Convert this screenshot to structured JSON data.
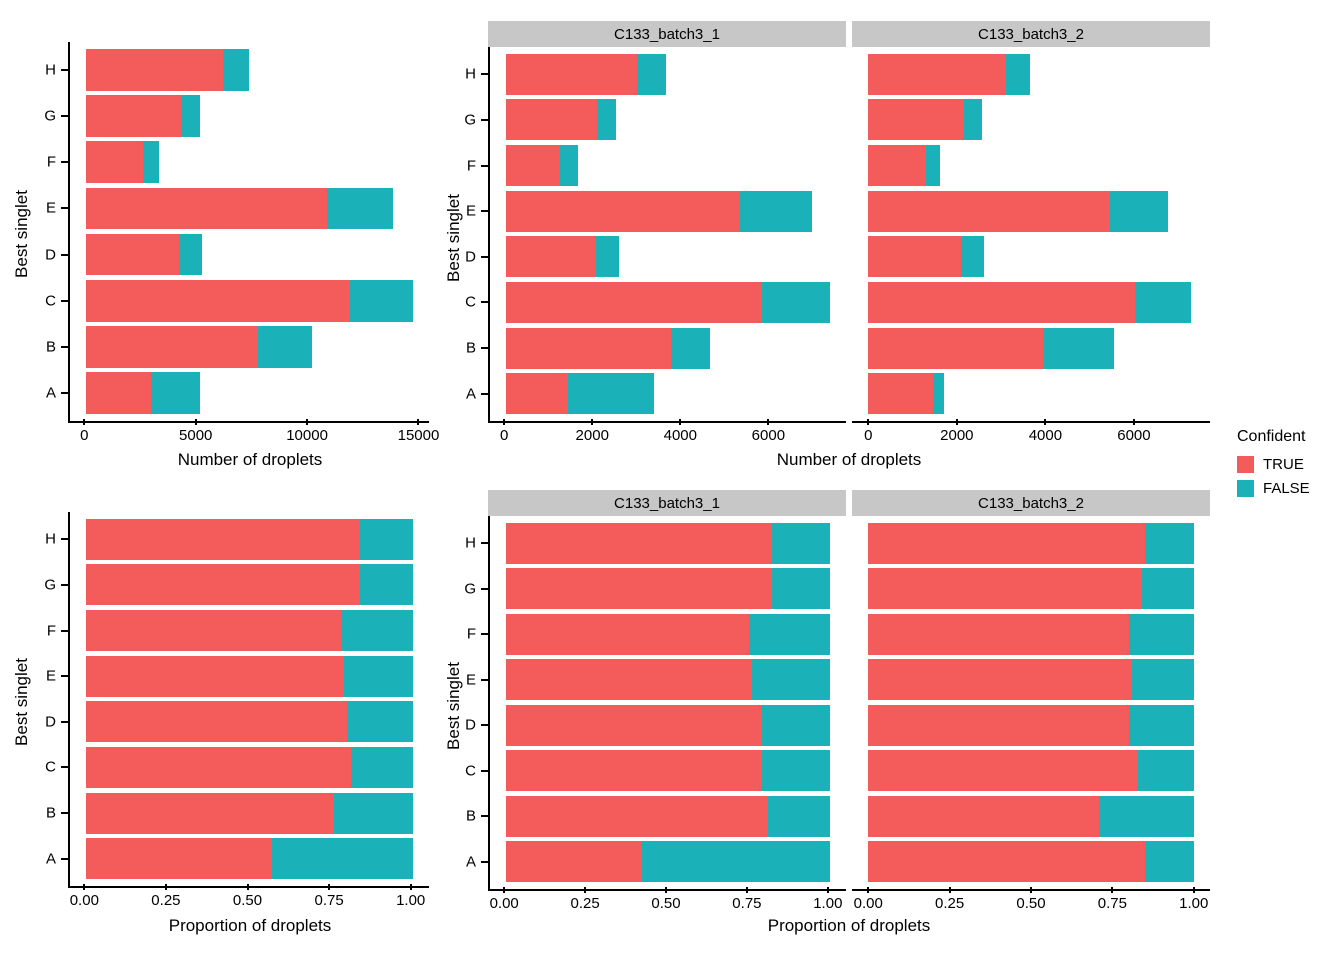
{
  "axis_titles": {
    "y": "Best singlet",
    "x_count": "Number of droplets",
    "x_prop": "Proportion of droplets"
  },
  "facets": [
    "C133_batch3_1",
    "C133_batch3_2"
  ],
  "categories_top_to_bottom": [
    "H",
    "G",
    "F",
    "E",
    "D",
    "C",
    "B",
    "A"
  ],
  "legend": {
    "title": "Confident",
    "items": [
      {
        "label": "TRUE",
        "color": "#F45B5B"
      },
      {
        "label": "FALSE",
        "color": "#1AB2B8"
      }
    ]
  },
  "colors": {
    "true": "#F45B5B",
    "false": "#1AB2B8",
    "strip_bg": "#C7C7C7",
    "axis": "#000000",
    "background": "#FFFFFF"
  },
  "chart_data": [
    {
      "type": "bar",
      "orientation": "horizontal",
      "stacked": true,
      "facet": null,
      "xlabel": "Number of droplets",
      "ylabel": "Best singlet",
      "categories": [
        "H",
        "G",
        "F",
        "E",
        "D",
        "C",
        "B",
        "A"
      ],
      "xmax": 14650,
      "xticks": [
        0,
        5000,
        10000,
        15000
      ],
      "xtick_labels": [
        "0",
        "5000",
        "10000",
        "15000"
      ],
      "series": [
        {
          "name": "TRUE",
          "values": [
            6150,
            4250,
            2550,
            10800,
            4150,
            11850,
            7700,
            2900
          ]
        },
        {
          "name": "FALSE",
          "values": [
            1150,
            850,
            700,
            2950,
            1050,
            2800,
            2450,
            2200
          ]
        }
      ]
    },
    {
      "type": "bar",
      "orientation": "horizontal",
      "stacked": true,
      "facet": "C133_batch3_1",
      "xlabel": "Number of droplets",
      "ylabel": "Best singlet",
      "categories": [
        "H",
        "G",
        "F",
        "E",
        "D",
        "C",
        "B",
        "A"
      ],
      "xmax": 7350,
      "xticks": [
        0,
        2000,
        4000,
        6000
      ],
      "xtick_labels": [
        "0",
        "2000",
        "4000",
        "6000"
      ],
      "series": [
        {
          "name": "TRUE",
          "values": [
            2980,
            2060,
            1220,
            5300,
            2050,
            5800,
            3750,
            1400
          ]
        },
        {
          "name": "FALSE",
          "values": [
            640,
            440,
            400,
            1650,
            520,
            1550,
            880,
            1950
          ]
        }
      ]
    },
    {
      "type": "bar",
      "orientation": "horizontal",
      "stacked": true,
      "facet": "C133_batch3_2",
      "xlabel": "Number of droplets",
      "ylabel": "Best singlet",
      "categories": [
        "H",
        "G",
        "F",
        "E",
        "D",
        "C",
        "B",
        "A"
      ],
      "xmax": 7350,
      "xticks": [
        0,
        2000,
        4000,
        6000
      ],
      "xtick_labels": [
        "0",
        "2000",
        "4000",
        "6000"
      ],
      "series": [
        {
          "name": "TRUE",
          "values": [
            3110,
            2170,
            1300,
            5460,
            2090,
            6030,
            3950,
            1470
          ]
        },
        {
          "name": "FALSE",
          "values": [
            550,
            400,
            320,
            1320,
            520,
            1260,
            1590,
            250
          ]
        }
      ]
    },
    {
      "type": "bar",
      "orientation": "horizontal",
      "stacked": true,
      "facet": null,
      "xlabel": "Proportion of droplets",
      "ylabel": "Best singlet",
      "categories": [
        "H",
        "G",
        "F",
        "E",
        "D",
        "C",
        "B",
        "A"
      ],
      "xmax": 1,
      "xticks": [
        0,
        0.25,
        0.5,
        0.75,
        1
      ],
      "xtick_labels": [
        "0.00",
        "0.25",
        "0.50",
        "0.75",
        "1.00"
      ],
      "series": [
        {
          "name": "TRUE",
          "values": [
            0.84,
            0.84,
            0.78,
            0.79,
            0.8,
            0.81,
            0.76,
            0.57
          ]
        },
        {
          "name": "FALSE",
          "values": [
            0.16,
            0.16,
            0.22,
            0.21,
            0.2,
            0.19,
            0.24,
            0.43
          ]
        }
      ]
    },
    {
      "type": "bar",
      "orientation": "horizontal",
      "stacked": true,
      "facet": "C133_batch3_1",
      "xlabel": "Proportion of droplets",
      "ylabel": "Best singlet",
      "categories": [
        "H",
        "G",
        "F",
        "E",
        "D",
        "C",
        "B",
        "A"
      ],
      "xmax": 1,
      "xticks": [
        0,
        0.25,
        0.5,
        0.75,
        1
      ],
      "xtick_labels": [
        "0.00",
        "0.25",
        "0.50",
        "0.75",
        "1.00"
      ],
      "series": [
        {
          "name": "TRUE",
          "values": [
            0.82,
            0.82,
            0.75,
            0.76,
            0.79,
            0.79,
            0.81,
            0.42
          ]
        },
        {
          "name": "FALSE",
          "values": [
            0.18,
            0.18,
            0.25,
            0.24,
            0.21,
            0.21,
            0.19,
            0.58
          ]
        }
      ]
    },
    {
      "type": "bar",
      "orientation": "horizontal",
      "stacked": true,
      "facet": "C133_batch3_2",
      "xlabel": "Proportion of droplets",
      "ylabel": "Best singlet",
      "categories": [
        "H",
        "G",
        "F",
        "E",
        "D",
        "C",
        "B",
        "A"
      ],
      "xmax": 1,
      "xticks": [
        0,
        0.25,
        0.5,
        0.75,
        1
      ],
      "xtick_labels": [
        "0.00",
        "0.25",
        "0.50",
        "0.75",
        "1.00"
      ],
      "series": [
        {
          "name": "TRUE",
          "values": [
            0.85,
            0.84,
            0.8,
            0.81,
            0.8,
            0.83,
            0.71,
            0.85
          ]
        },
        {
          "name": "FALSE",
          "values": [
            0.15,
            0.16,
            0.2,
            0.19,
            0.2,
            0.17,
            0.29,
            0.15
          ]
        }
      ]
    }
  ]
}
